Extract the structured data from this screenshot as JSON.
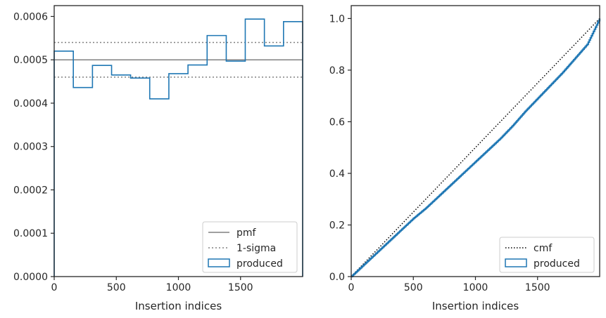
{
  "chart_data": [
    {
      "type": "histogram-step",
      "xlabel": "Insertion indices",
      "ylabel": "",
      "xlim": [
        0,
        2000
      ],
      "ylim": [
        0,
        0.000625
      ],
      "xticks": [
        0,
        500,
        1000,
        1500
      ],
      "yticks": [
        0,
        0.0001,
        0.0002,
        0.0003,
        0.0004,
        0.0005,
        0.0006
      ],
      "ytick_labels": [
        "0.0000",
        "0.0001",
        "0.0002",
        "0.0003",
        "0.0004",
        "0.0005",
        "0.0006"
      ],
      "grid": false,
      "legend": {
        "placement": "lower-right",
        "entries": [
          "pmf",
          "1-sigma",
          "produced"
        ]
      },
      "series": [
        {
          "name": "pmf",
          "style": "solid",
          "color": "#808080",
          "value": 0.0005
        },
        {
          "name": "1-sigma",
          "style": "dotted",
          "color": "#808080",
          "values": [
            0.00046,
            0.00054
          ]
        },
        {
          "name": "produced",
          "style": "step",
          "color": "#1f77b4",
          "bin_edges": [
            0,
            154,
            308,
            462,
            615,
            769,
            923,
            1077,
            1231,
            1385,
            1538,
            1692,
            1846,
            2000
          ],
          "values": [
            0.00052,
            0.000436,
            0.000487,
            0.000465,
            0.000458,
            0.00041,
            0.000468,
            0.000488,
            0.000556,
            0.000497,
            0.000594,
            0.000532,
            0.000588
          ]
        }
      ]
    },
    {
      "type": "line",
      "xlabel": "Insertion indices",
      "ylabel": "",
      "xlim": [
        0,
        2000
      ],
      "ylim": [
        0,
        1.05
      ],
      "xticks": [
        0,
        500,
        1000,
        1500
      ],
      "yticks": [
        0,
        0.2,
        0.4,
        0.6,
        0.8,
        1.0
      ],
      "ytick_labels": [
        "0.0",
        "0.2",
        "0.4",
        "0.6",
        "0.8",
        "1.0"
      ],
      "grid": false,
      "legend": {
        "placement": "lower-right",
        "entries": [
          "cmf",
          "produced"
        ]
      },
      "series": [
        {
          "name": "cmf",
          "style": "dotted",
          "color": "#000000",
          "x": [
            0,
            2000
          ],
          "y": [
            0,
            1.0
          ]
        },
        {
          "name": "produced",
          "style": "step",
          "color": "#1f77b4",
          "x": [
            0,
            100,
            200,
            300,
            400,
            500,
            600,
            700,
            800,
            900,
            1000,
            1100,
            1200,
            1300,
            1400,
            1500,
            1600,
            1700,
            1800,
            1900,
            2000
          ],
          "y": [
            0,
            0.045,
            0.09,
            0.135,
            0.18,
            0.225,
            0.265,
            0.31,
            0.355,
            0.4,
            0.445,
            0.49,
            0.535,
            0.585,
            0.64,
            0.69,
            0.74,
            0.79,
            0.845,
            0.9,
            1.0
          ]
        }
      ]
    }
  ]
}
